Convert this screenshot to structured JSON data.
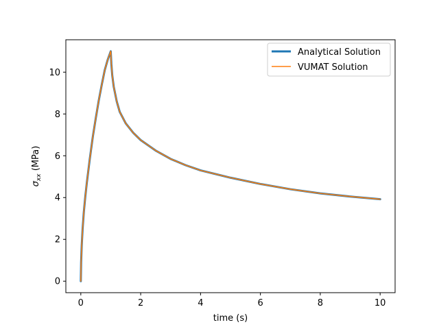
{
  "chart_data": {
    "type": "line",
    "title": "",
    "xlabel": "time (s)",
    "ylabel_prefix": "σ",
    "ylabel_subscript": "xx",
    "ylabel_suffix": " (MPa)",
    "xlim": [
      -0.5,
      10.5
    ],
    "ylim": [
      -0.55,
      11.55
    ],
    "xticks": [
      0,
      2,
      4,
      6,
      8,
      10
    ],
    "yticks": [
      0,
      2,
      4,
      6,
      8,
      10
    ],
    "xtick_labels": [
      "0",
      "2",
      "4",
      "6",
      "8",
      "10"
    ],
    "ytick_labels": [
      "0",
      "2",
      "4",
      "6",
      "8",
      "10"
    ],
    "grid": false,
    "legend_position": "top-right",
    "series": [
      {
        "name": "Analytical Solution",
        "color": "#1f77b4",
        "x": [
          0,
          0.01,
          0.03,
          0.06,
          0.1,
          0.15,
          0.2,
          0.3,
          0.4,
          0.5,
          0.6,
          0.7,
          0.8,
          0.9,
          1.0,
          1.02,
          1.05,
          1.1,
          1.2,
          1.3,
          1.5,
          1.75,
          2.0,
          2.5,
          3.0,
          3.5,
          4.0,
          5.0,
          6.0,
          7.0,
          8.0,
          9.0,
          10.0
        ],
        "y": [
          0,
          0.9,
          1.7,
          2.5,
          3.3,
          4.05,
          4.7,
          5.85,
          6.9,
          7.8,
          8.65,
          9.4,
          10.1,
          10.6,
          11.0,
          10.4,
          9.85,
          9.3,
          8.6,
          8.1,
          7.55,
          7.1,
          6.75,
          6.25,
          5.85,
          5.55,
          5.3,
          4.95,
          4.65,
          4.4,
          4.2,
          4.05,
          3.92
        ]
      },
      {
        "name": "VUMAT Solution",
        "color": "#ff7f0e",
        "x": [
          0,
          0.01,
          0.03,
          0.06,
          0.1,
          0.15,
          0.2,
          0.3,
          0.4,
          0.5,
          0.6,
          0.7,
          0.8,
          0.9,
          1.0,
          1.02,
          1.05,
          1.1,
          1.2,
          1.3,
          1.5,
          1.75,
          2.0,
          2.5,
          3.0,
          3.5,
          4.0,
          5.0,
          6.0,
          7.0,
          8.0,
          9.0,
          10.0
        ],
        "y": [
          0,
          0.9,
          1.7,
          2.5,
          3.3,
          4.05,
          4.7,
          5.85,
          6.9,
          7.8,
          8.65,
          9.4,
          10.1,
          10.6,
          11.0,
          10.4,
          9.85,
          9.3,
          8.6,
          8.1,
          7.55,
          7.1,
          6.75,
          6.25,
          5.85,
          5.55,
          5.3,
          4.95,
          4.65,
          4.4,
          4.2,
          4.05,
          3.92
        ]
      }
    ]
  }
}
